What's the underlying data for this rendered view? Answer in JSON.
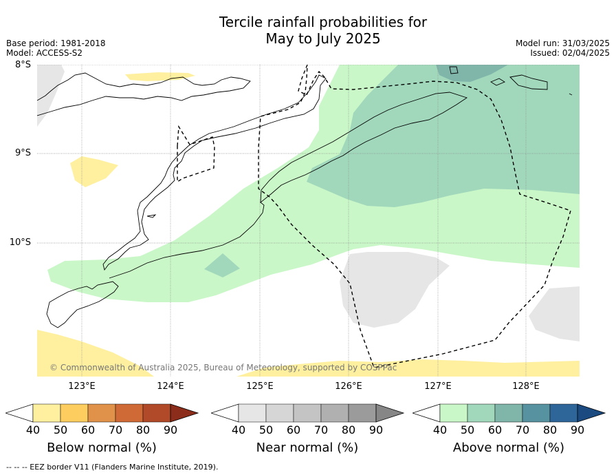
{
  "title_line1": "Tercile rainfall probabilities for",
  "title_line2": "May to July 2025",
  "base_period": "Base period: 1981-2018",
  "model": "Model: ACCESS-S2",
  "model_run": "Model run: 31/03/2025",
  "issued": "Issued: 02/04/2025",
  "lat_labels": [
    "8°S",
    "9°S",
    "10°S"
  ],
  "lon_labels": [
    "123°E",
    "124°E",
    "125°E",
    "126°E",
    "127°E",
    "128°E"
  ],
  "copyright": "© Commonwealth of Australia 2025, Bureau of Meteorology, supported by COSPPac",
  "colorbars": [
    {
      "name": "below",
      "label": "Below normal (%)",
      "ticks": [
        "40",
        "50",
        "60",
        "70",
        "80",
        "90"
      ],
      "colors": [
        "#fff0a0",
        "#fdce5f",
        "#e0924a",
        "#cf6a36",
        "#b04a28",
        "#8c2d1c"
      ]
    },
    {
      "name": "near",
      "label": "Near normal (%)",
      "ticks": [
        "40",
        "50",
        "60",
        "70",
        "80",
        "90"
      ],
      "colors": [
        "#e6e6e6",
        "#d6d6d6",
        "#c4c4c4",
        "#b0b0b0",
        "#9b9b9b",
        "#868686"
      ]
    },
    {
      "name": "above",
      "label": "Above normal (%)",
      "ticks": [
        "40",
        "50",
        "60",
        "70",
        "80",
        "90"
      ],
      "colors": [
        "#caf7c8",
        "#a1d8bc",
        "#80b5aa",
        "#5792a0",
        "#2f6699",
        "#1a4a80"
      ]
    }
  ],
  "footer": "--  --  -- EEZ border V11 (Flanders Marine Institute, 2019).",
  "colors": {
    "above_40": "#caf7c8",
    "above_50": "#a1d8bc",
    "above_60": "#80b5aa",
    "near_40": "#e6e6e6",
    "below_40": "#fff0a0",
    "grid": "#888888"
  }
}
